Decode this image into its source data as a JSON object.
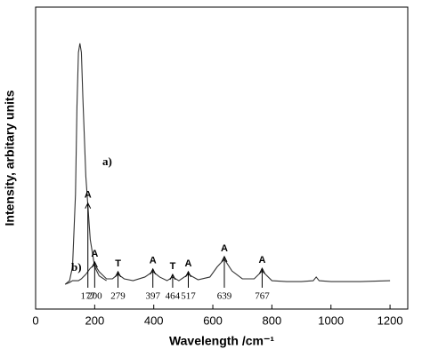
{
  "chart_data": {
    "type": "line",
    "xlabel": "Wavelength /cm⁻¹",
    "ylabel": "Intensity, arbitary units",
    "xlim": [
      0,
      1260
    ],
    "xticks": [
      0,
      200,
      400,
      600,
      800,
      1000,
      1200
    ],
    "ylim": [
      0,
      100
    ],
    "x": [
      100,
      115,
      125,
      135,
      140,
      145,
      150,
      155,
      160,
      170,
      185,
      200,
      215,
      240,
      260,
      279,
      300,
      330,
      370,
      397,
      420,
      445,
      464,
      485,
      517,
      550,
      590,
      615,
      639,
      665,
      700,
      740,
      767,
      800,
      850,
      900,
      940,
      950,
      960,
      1000,
      1100,
      1200
    ],
    "series": [
      {
        "name": "a)",
        "color": "#333333",
        "values": [
          8.2,
          9.4,
          14,
          38,
          67,
          85,
          88,
          85,
          70,
          44,
          23,
          14,
          11,
          9.4,
          null,
          null,
          null,
          null,
          null,
          null,
          null,
          null,
          null,
          null,
          null,
          null,
          null,
          null,
          null,
          null,
          null,
          null,
          null,
          null,
          null,
          null,
          null,
          null,
          null,
          null,
          null,
          null
        ]
      },
      {
        "name": "b)",
        "color": "#333333",
        "values": [
          8.2,
          8.8,
          9.4,
          9.4,
          9.4,
          9.4,
          9.7,
          10,
          10.5,
          11.5,
          13.5,
          14.7,
          12.4,
          10,
          10,
          11.5,
          10,
          9.4,
          10.6,
          12.4,
          10.6,
          9.4,
          10.6,
          9.4,
          11.5,
          9.7,
          10.6,
          14,
          16.5,
          12.6,
          10,
          10,
          12.6,
          9.4,
          9.1,
          9.1,
          9.4,
          10.6,
          9.4,
          9.1,
          9.1,
          9.4
        ]
      }
    ],
    "annotations": [
      {
        "mode": "A",
        "position": 177
      },
      {
        "mode": "A",
        "position": 200
      },
      {
        "mode": "T",
        "position": 279
      },
      {
        "mode": "A",
        "position": 397
      },
      {
        "mode": "T",
        "position": 464
      },
      {
        "mode": "A",
        "position": 517
      },
      {
        "mode": "A",
        "position": 639
      },
      {
        "mode": "A",
        "position": 767
      }
    ]
  }
}
